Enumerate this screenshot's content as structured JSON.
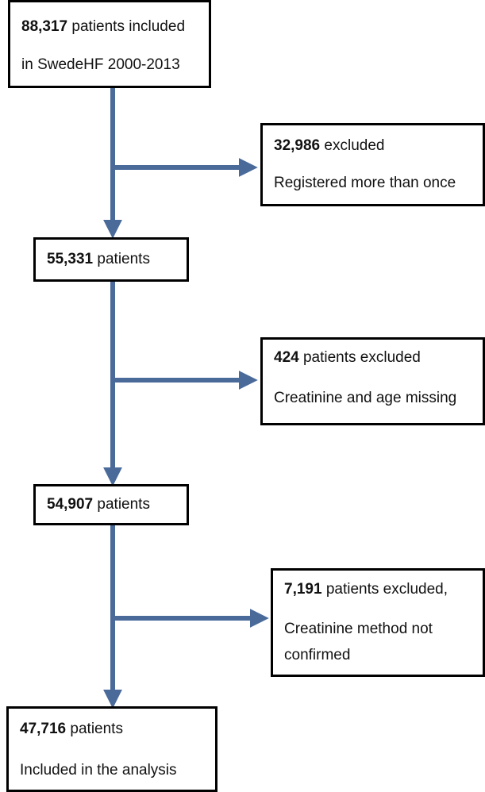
{
  "boxes": {
    "included": {
      "count": "88,317",
      "text": " patients included",
      "line2": "in SwedeHF 2000-2013"
    },
    "excluded_1": {
      "count": "32,986",
      "text": " excluded",
      "line2": "Registered more than once"
    },
    "patients_2": {
      "count": "55,331",
      "text": " patients"
    },
    "excluded_2": {
      "count": "424",
      "text": " patients excluded",
      "line2": "Creatinine and age missing"
    },
    "patients_3": {
      "count": "54,907",
      "text": " patients"
    },
    "excluded_3": {
      "count": "7,191",
      "text": " patients excluded,",
      "line2": "Creatinine method not",
      "line3": "confirmed"
    },
    "final": {
      "count": "47,716",
      "text": " patients",
      "line2": "Included in the analysis"
    }
  },
  "colors": {
    "connector": "#4a6a9a",
    "border": "#000000"
  }
}
